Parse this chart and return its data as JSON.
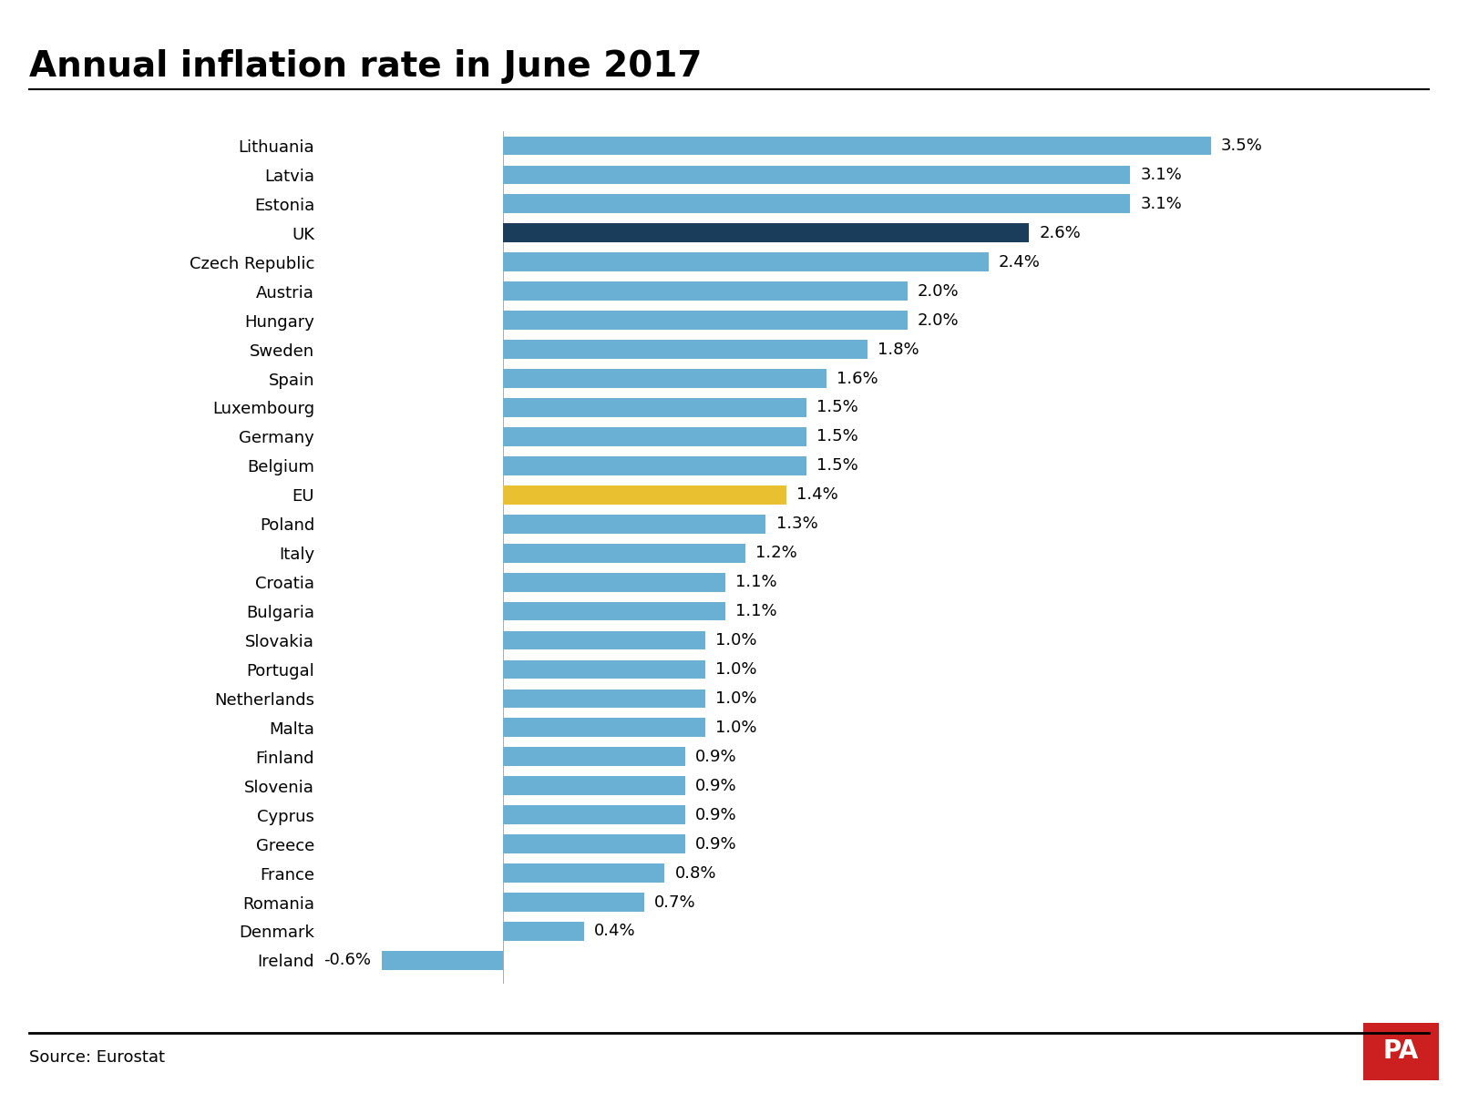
{
  "title": "Annual inflation rate in June 2017",
  "source": "Source: Eurostat",
  "categories": [
    "Lithuania",
    "Latvia",
    "Estonia",
    "UK",
    "Czech Republic",
    "Austria",
    "Hungary",
    "Sweden",
    "Spain",
    "Luxembourg",
    "Germany",
    "Belgium",
    "EU",
    "Poland",
    "Italy",
    "Croatia",
    "Bulgaria",
    "Slovakia",
    "Portugal",
    "Netherlands",
    "Malta",
    "Finland",
    "Slovenia",
    "Cyprus",
    "Greece",
    "France",
    "Romania",
    "Denmark",
    "Ireland"
  ],
  "values": [
    3.5,
    3.1,
    3.1,
    2.6,
    2.4,
    2.0,
    2.0,
    1.8,
    1.6,
    1.5,
    1.5,
    1.5,
    1.4,
    1.3,
    1.2,
    1.1,
    1.1,
    1.0,
    1.0,
    1.0,
    1.0,
    0.9,
    0.9,
    0.9,
    0.9,
    0.8,
    0.7,
    0.4,
    -0.6
  ],
  "bar_colors": [
    "#6aafd4",
    "#6aafd4",
    "#6aafd4",
    "#1a3d5c",
    "#6aafd4",
    "#6aafd4",
    "#6aafd4",
    "#6aafd4",
    "#6aafd4",
    "#6aafd4",
    "#6aafd4",
    "#6aafd4",
    "#e8c030",
    "#6aafd4",
    "#6aafd4",
    "#6aafd4",
    "#6aafd4",
    "#6aafd4",
    "#6aafd4",
    "#6aafd4",
    "#6aafd4",
    "#6aafd4",
    "#6aafd4",
    "#6aafd4",
    "#6aafd4",
    "#6aafd4",
    "#6aafd4",
    "#6aafd4",
    "#6aafd4"
  ],
  "title_fontsize": 28,
  "label_fontsize": 13,
  "value_fontsize": 13,
  "source_fontsize": 13,
  "background_color": "#ffffff",
  "bar_height": 0.65,
  "xlim": [
    -0.9,
    4.0
  ],
  "pa_box_color": "#cc2020",
  "pa_text_color": "#ffffff"
}
